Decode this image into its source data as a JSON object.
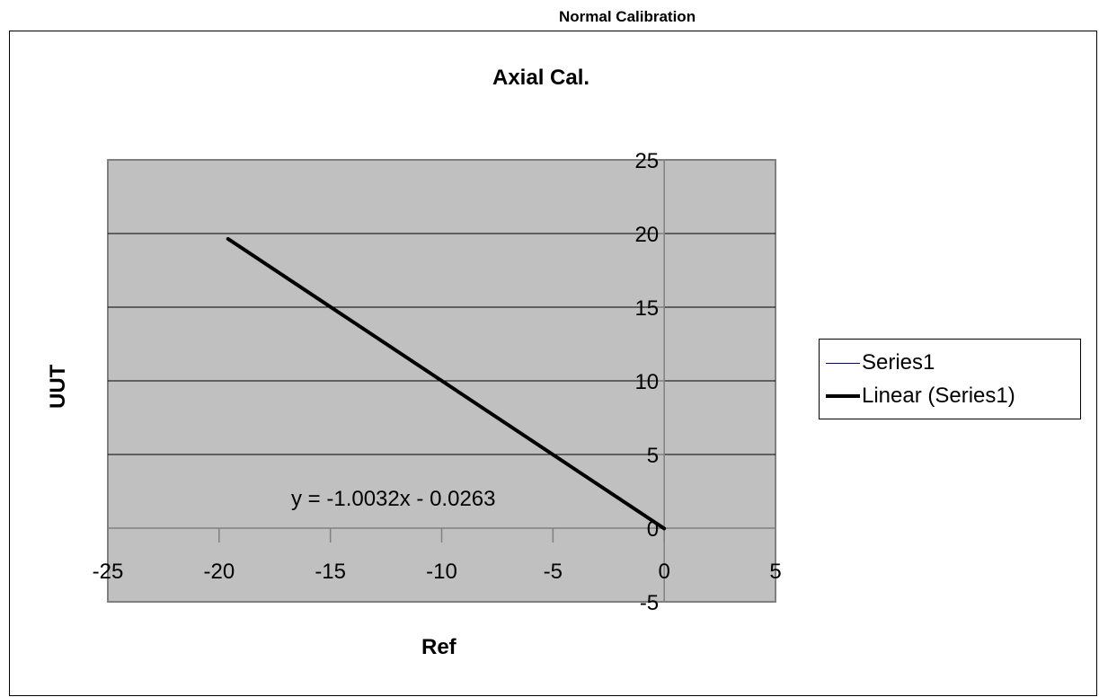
{
  "page": {
    "header": "Normal Calibration"
  },
  "chart_data": {
    "type": "scatter",
    "title": "Axial Cal.",
    "xlabel": "Ref",
    "ylabel": "UUT",
    "xlim": [
      -25,
      5
    ],
    "ylim": [
      -5,
      25
    ],
    "x_ticks": [
      -25,
      -20,
      -15,
      -10,
      -5,
      0,
      5
    ],
    "y_ticks": [
      -5,
      0,
      5,
      10,
      15,
      20,
      25
    ],
    "grid": {
      "horizontal": true,
      "vertical": false
    },
    "plot_background": "#c0c0c0",
    "legend_position": "right",
    "series": [
      {
        "name": "Series1",
        "color": "#000080",
        "x": [
          -19.6,
          -15,
          -10,
          -5,
          0
        ],
        "y": [
          19.64,
          15.0,
          9.98,
          4.96,
          0
        ]
      }
    ],
    "trendline": {
      "name": "Linear (Series1)",
      "color": "#000000",
      "slope": -1.0032,
      "intercept": -0.0263,
      "x_range": [
        -19.6,
        0
      ],
      "equation": "y = -1.0032x - 0.0263"
    }
  }
}
